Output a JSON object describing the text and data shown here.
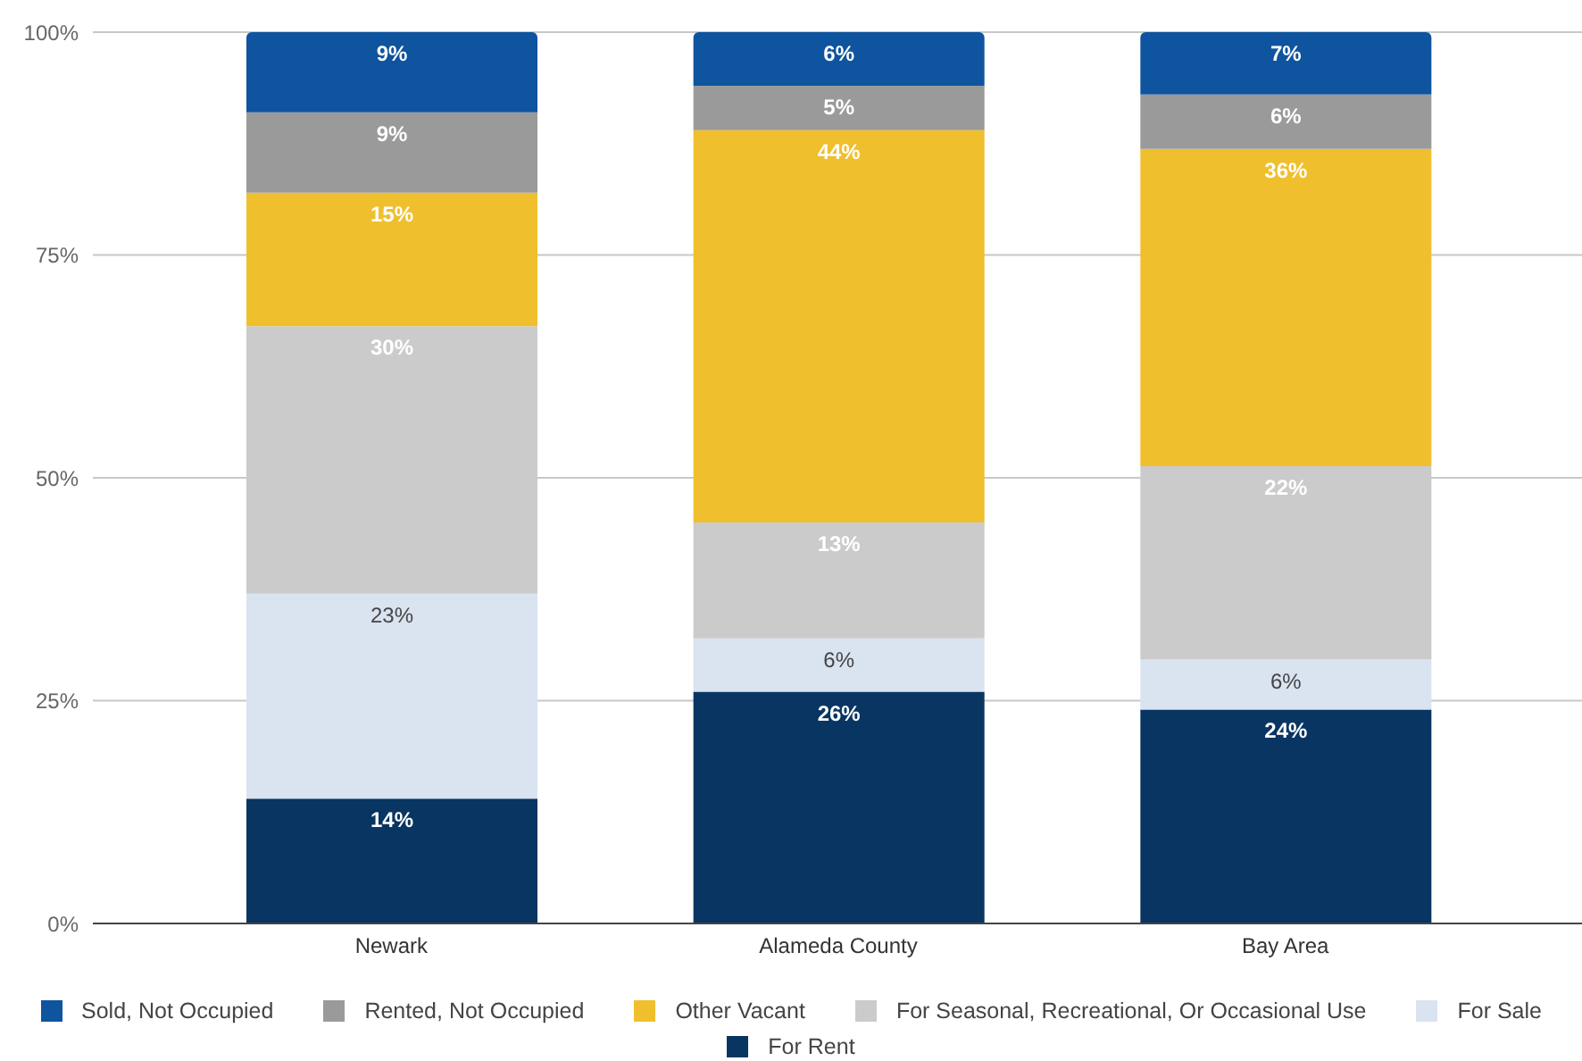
{
  "chart_data": {
    "type": "bar",
    "stacked": true,
    "categories": [
      "Newark",
      "Alameda County",
      "Bay Area"
    ],
    "series": [
      {
        "name": "For Rent",
        "color": "#083562",
        "values": [
          14,
          26,
          24
        ],
        "value_labels": [
          "14%",
          "26%",
          "24%"
        ]
      },
      {
        "name": "For Sale",
        "color": "#dae3f0",
        "values": [
          23,
          6,
          5.6
        ],
        "value_labels": [
          "23%",
          "6%",
          "6%"
        ]
      },
      {
        "name": "For Seasonal, Recreational, Or Occasional Use",
        "color": "#cbcbcb",
        "values": [
          30,
          13,
          21.7
        ],
        "value_labels": [
          "30%",
          "13%",
          "22%"
        ]
      },
      {
        "name": "Other Vacant",
        "color": "#f0bf2d",
        "values": [
          15,
          44,
          35.6
        ],
        "value_labels": [
          "15%",
          "44%",
          "36%"
        ]
      },
      {
        "name": "Rented, Not Occupied",
        "color": "#9a9a9a",
        "values": [
          9,
          5,
          6.1
        ],
        "value_labels": [
          "9%",
          "5%",
          "6%"
        ]
      },
      {
        "name": "Sold, Not Occupied",
        "color": "#0e549e",
        "values": [
          9,
          6,
          7
        ],
        "value_labels": [
          "9%",
          "6%",
          "7%"
        ]
      }
    ],
    "ylim": [
      0,
      100
    ],
    "yticks": [
      {
        "value": 0,
        "label": "0%"
      },
      {
        "value": 25,
        "label": "25%"
      },
      {
        "value": 50,
        "label": "50%"
      },
      {
        "value": 75,
        "label": "75%"
      },
      {
        "value": 100,
        "label": "100%"
      }
    ],
    "grid": "y",
    "legend": "bottom"
  }
}
